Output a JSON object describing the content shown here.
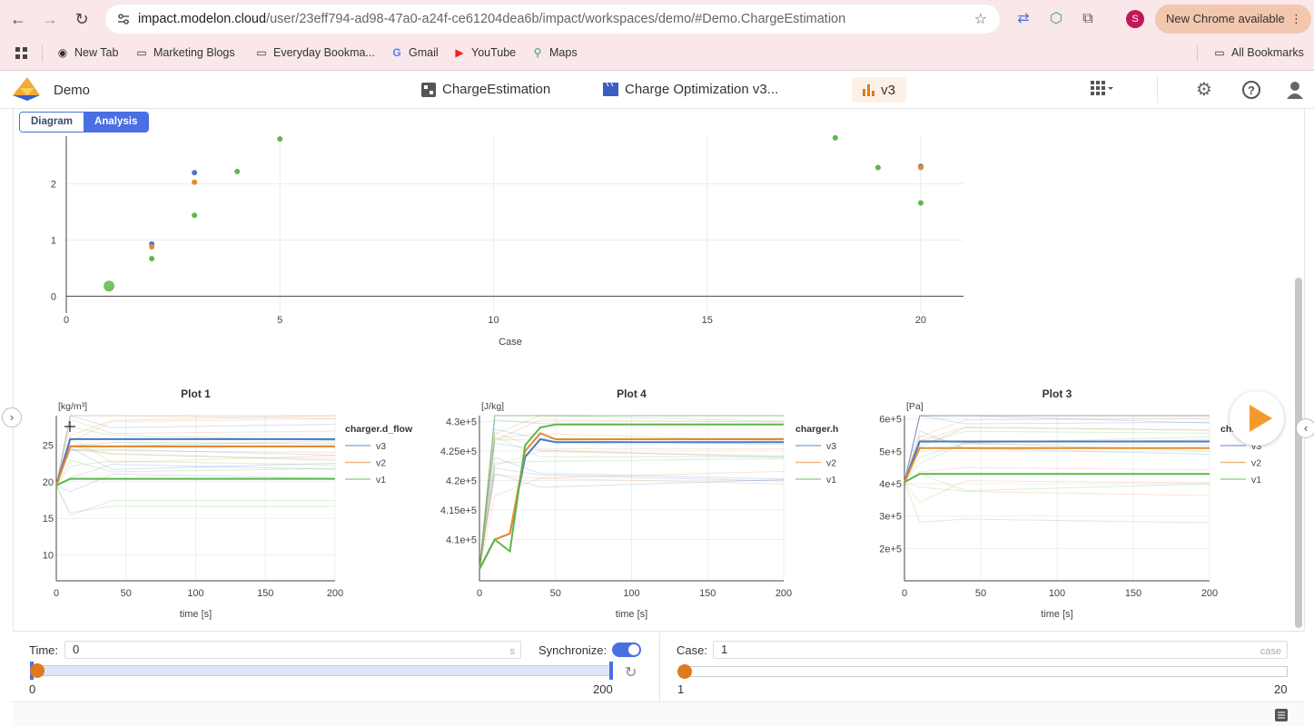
{
  "browser": {
    "url_host": "impact.modelon.cloud",
    "url_path": "/user/23eff794-ad98-47a0-a24f-ce61204dea6b/impact/workspaces/demo/#Demo.ChargeEstimation",
    "new_chrome_label": "New Chrome available",
    "profile_initial": "S"
  },
  "bookmarks": {
    "items": [
      "New Tab",
      "Marketing Blogs",
      "Everyday Bookma...",
      "Gmail",
      "YouTube",
      "Maps"
    ],
    "all_bookmarks": "All Bookmarks"
  },
  "app": {
    "title": "Demo",
    "tab_model": "ChargeEstimation",
    "tab_experiment": "Charge Optimization v3...",
    "tab_version": "v3"
  },
  "subtabs": [
    "Diagram",
    "Analysis"
  ],
  "colors": {
    "blue": "#4a77c8",
    "orange": "#e58a2e",
    "green": "#5cb84a",
    "accent": "#4a6fe3"
  },
  "chart_data": [
    {
      "type": "scatter",
      "xlabel": "Case",
      "ylabel": "",
      "xlim": [
        0,
        21
      ],
      "ylim": [
        -0.3,
        2.85
      ],
      "xticks": [
        0,
        5,
        10,
        15,
        20
      ],
      "yticks": [
        0,
        1,
        2
      ],
      "series": [
        {
          "color": "blue",
          "x": [
            2,
            3,
            20
          ],
          "y": [
            0.93,
            2.2,
            2.31
          ]
        },
        {
          "color": "orange",
          "x": [
            2,
            3,
            20
          ],
          "y": [
            0.88,
            2.03,
            2.29
          ]
        },
        {
          "color": "green",
          "x": [
            1,
            2,
            3,
            4,
            5,
            18,
            19,
            20
          ],
          "y": [
            0.18,
            0.67,
            1.44,
            2.22,
            2.8,
            2.82,
            2.29,
            1.66
          ]
        }
      ]
    },
    {
      "type": "line",
      "title": "Plot 1",
      "unit": "[kg/m³]",
      "legend_title": "charger.d_flow",
      "xlabel": "time [s]",
      "xlim": [
        0,
        200
      ],
      "ylim": [
        6.5,
        29
      ],
      "xticks": [
        0,
        50,
        100,
        150,
        200
      ],
      "yticks": [
        10,
        15,
        20,
        25
      ],
      "series": [
        {
          "name": "v3",
          "color": "blue",
          "x": [
            0,
            10,
            200
          ],
          "y": [
            19.5,
            25.8,
            25.8
          ]
        },
        {
          "name": "v2",
          "color": "orange",
          "x": [
            0,
            10,
            200
          ],
          "y": [
            19.5,
            24.8,
            24.8
          ]
        },
        {
          "name": "v1",
          "color": "green",
          "x": [
            0,
            10,
            200
          ],
          "y": [
            19.5,
            20.4,
            20.4
          ]
        }
      ]
    },
    {
      "type": "line",
      "title": "Plot 4",
      "unit": "[J/kg]",
      "legend_title": "charger.h",
      "xlabel": "time [s]",
      "xlim": [
        0,
        200
      ],
      "ylim": [
        403000,
        431000
      ],
      "xticks": [
        0,
        50,
        100,
        150,
        200
      ],
      "ytick_labels": [
        "4.1e+5",
        "4.15e+5",
        "4.2e+5",
        "4.25e+5",
        "4.3e+5"
      ],
      "yticks": [
        410000,
        415000,
        420000,
        425000,
        430000
      ],
      "series": [
        {
          "name": "v3",
          "color": "blue",
          "x": [
            0,
            10,
            20,
            30,
            40,
            50,
            200
          ],
          "y": [
            405000,
            410000,
            411000,
            424000,
            427000,
            426500,
            426500
          ]
        },
        {
          "name": "v2",
          "color": "orange",
          "x": [
            0,
            10,
            20,
            30,
            40,
            50,
            200
          ],
          "y": [
            405000,
            410000,
            411000,
            425000,
            428000,
            427000,
            427000
          ]
        },
        {
          "name": "v1",
          "color": "green",
          "x": [
            0,
            10,
            20,
            30,
            40,
            50,
            200
          ],
          "y": [
            405000,
            410000,
            408000,
            426000,
            429000,
            429500,
            429500
          ]
        }
      ]
    },
    {
      "type": "line",
      "title": "Plot 3",
      "unit": "[Pa]",
      "legend_title": "ch...",
      "xlabel": "time [s]",
      "xlim": [
        0,
        200
      ],
      "ylim": [
        100000,
        610000
      ],
      "xticks": [
        0,
        50,
        100,
        150,
        200
      ],
      "ytick_labels": [
        "2e+5",
        "3e+5",
        "4e+5",
        "5e+5",
        "6e+5"
      ],
      "yticks": [
        200000,
        300000,
        400000,
        500000,
        600000
      ],
      "series": [
        {
          "name": "v3",
          "color": "blue",
          "x": [
            0,
            10,
            200
          ],
          "y": [
            405000,
            530000,
            530000
          ]
        },
        {
          "name": "v2",
          "color": "orange",
          "x": [
            0,
            10,
            200
          ],
          "y": [
            405000,
            510000,
            510000
          ]
        },
        {
          "name": "v1",
          "color": "green",
          "x": [
            0,
            10,
            200
          ],
          "y": [
            405000,
            430000,
            430000
          ]
        }
      ]
    }
  ],
  "controls": {
    "time_label": "Time:",
    "time_value": "0",
    "time_unit": "s",
    "sync_label": "Synchronize:",
    "time_min": "0",
    "time_max": "200",
    "time_position": 0,
    "case_label": "Case:",
    "case_value": "1",
    "case_unit": "case",
    "case_min": "1",
    "case_max": "20",
    "case_position": 0
  }
}
